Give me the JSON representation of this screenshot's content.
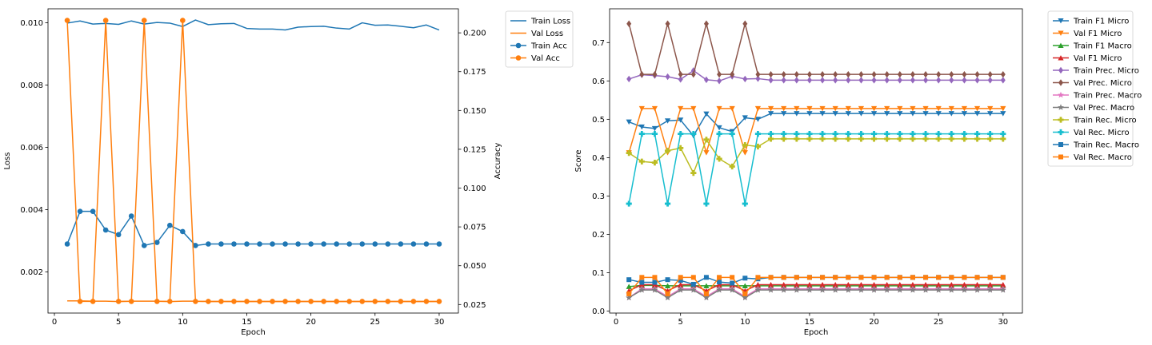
{
  "chart_data": [
    {
      "type": "line",
      "xlabel": "Epoch",
      "ylabel": "Loss",
      "y2label": "Accuracy",
      "xlim": [
        -0.5,
        31.5
      ],
      "ylim": [
        0.00068,
        0.01045
      ],
      "y2lim": [
        0.0195,
        0.2155
      ],
      "xticks": [
        0,
        5,
        10,
        15,
        20,
        25,
        30
      ],
      "yticks": [
        0.002,
        0.004,
        0.006,
        0.008,
        0.01
      ],
      "ytick_labels": [
        "0.002",
        "0.004",
        "0.006",
        "0.008",
        "0.010"
      ],
      "y2ticks": [
        0.025,
        0.05,
        0.075,
        0.1,
        0.125,
        0.15,
        0.175,
        0.2
      ],
      "y2tick_labels": [
        "0.025",
        "0.050",
        "0.075",
        "0.100",
        "0.125",
        "0.150",
        "0.175",
        "0.200"
      ],
      "legend_position": "outside-top-right",
      "x": [
        1,
        2,
        3,
        4,
        5,
        6,
        7,
        8,
        9,
        10,
        11,
        12,
        13,
        14,
        15,
        16,
        17,
        18,
        19,
        20,
        21,
        22,
        23,
        24,
        25,
        26,
        27,
        28,
        29,
        30
      ],
      "series": [
        {
          "name": "Train Loss",
          "axis": "left",
          "color": "#1f77b4",
          "marker": "none",
          "values": [
            0.00999,
            0.01006,
            0.00996,
            0.00998,
            0.00995,
            0.01006,
            0.00996,
            0.01001,
            0.00999,
            0.00988,
            0.01009,
            0.00994,
            0.00997,
            0.00998,
            0.00982,
            0.0098,
            0.0098,
            0.00977,
            0.00986,
            0.00988,
            0.00989,
            0.00983,
            0.0098,
            0.01,
            0.00992,
            0.00993,
            0.00989,
            0.00984,
            0.00993,
            0.00977
          ]
        },
        {
          "name": "Val Loss",
          "axis": "left",
          "color": "#ff7f0e",
          "marker": "none",
          "values": [
            0.00107,
            0.00107,
            0.00106,
            0.00106,
            0.00105,
            0.00106,
            0.00106,
            0.00106,
            0.00105,
            0.00106,
            0.00106,
            0.00105,
            0.00105,
            0.00105,
            0.00105,
            0.00105,
            0.00105,
            0.00105,
            0.00105,
            0.00105,
            0.00105,
            0.00105,
            0.00105,
            0.00105,
            0.00105,
            0.00105,
            0.00105,
            0.00105,
            0.00105,
            0.00105
          ]
        },
        {
          "name": "Train Acc",
          "axis": "right",
          "color": "#1f77b4",
          "marker": "circle",
          "values": [
            0.064,
            0.085,
            0.085,
            0.073,
            0.07,
            0.082,
            0.063,
            0.065,
            0.076,
            0.072,
            0.063,
            0.064,
            0.064,
            0.064,
            0.064,
            0.064,
            0.064,
            0.064,
            0.064,
            0.064,
            0.064,
            0.064,
            0.064,
            0.064,
            0.064,
            0.064,
            0.064,
            0.064,
            0.064,
            0.064
          ]
        },
        {
          "name": "Val Acc",
          "axis": "right",
          "color": "#ff7f0e",
          "marker": "circle",
          "values": [
            0.208,
            0.027,
            0.027,
            0.208,
            0.027,
            0.027,
            0.208,
            0.027,
            0.027,
            0.208,
            0.027,
            0.027,
            0.027,
            0.027,
            0.027,
            0.027,
            0.027,
            0.027,
            0.027,
            0.027,
            0.027,
            0.027,
            0.027,
            0.027,
            0.027,
            0.027,
            0.027,
            0.027,
            0.027,
            0.027
          ]
        }
      ]
    },
    {
      "type": "line",
      "xlabel": "Epoch",
      "ylabel": "Score",
      "xlim": [
        -0.5,
        31.5
      ],
      "ylim": [
        -0.005,
        0.788
      ],
      "xticks": [
        0,
        5,
        10,
        15,
        20,
        25,
        30
      ],
      "yticks": [
        0.0,
        0.1,
        0.2,
        0.3,
        0.4,
        0.5,
        0.6,
        0.7
      ],
      "ytick_labels": [
        "0.0",
        "0.1",
        "0.2",
        "0.3",
        "0.4",
        "0.5",
        "0.6",
        "0.7"
      ],
      "legend_position": "outside-top-right",
      "x": [
        1,
        2,
        3,
        4,
        5,
        6,
        7,
        8,
        9,
        10,
        11,
        12,
        13,
        14,
        15,
        16,
        17,
        18,
        19,
        20,
        21,
        22,
        23,
        24,
        25,
        26,
        27,
        28,
        29,
        30
      ],
      "series": [
        {
          "name": "Train F1 Micro",
          "color": "#1f77b4",
          "marker": "tri_down",
          "values": [
            0.493,
            0.48,
            0.476,
            0.496,
            0.498,
            0.457,
            0.514,
            0.478,
            0.468,
            0.504,
            0.5,
            0.515,
            0.515,
            0.515,
            0.515,
            0.515,
            0.515,
            0.515,
            0.515,
            0.515,
            0.515,
            0.515,
            0.515,
            0.515,
            0.515,
            0.515,
            0.515,
            0.515,
            0.515,
            0.515
          ]
        },
        {
          "name": "Val F1 Micro",
          "color": "#ff7f0e",
          "marker": "tri_down",
          "values": [
            0.413,
            0.528,
            0.528,
            0.413,
            0.528,
            0.528,
            0.413,
            0.528,
            0.528,
            0.413,
            0.528,
            0.528,
            0.528,
            0.528,
            0.528,
            0.528,
            0.528,
            0.528,
            0.528,
            0.528,
            0.528,
            0.528,
            0.528,
            0.528,
            0.528,
            0.528,
            0.528,
            0.528,
            0.528,
            0.528
          ]
        },
        {
          "name": "Train F1 Macro",
          "color": "#2ca02c",
          "marker": "tri_up",
          "values": [
            0.064,
            0.067,
            0.067,
            0.066,
            0.066,
            0.066,
            0.066,
            0.066,
            0.066,
            0.066,
            0.066,
            0.066,
            0.066,
            0.066,
            0.066,
            0.066,
            0.066,
            0.066,
            0.066,
            0.066,
            0.066,
            0.066,
            0.066,
            0.066,
            0.066,
            0.066,
            0.066,
            0.066,
            0.066,
            0.066
          ]
        },
        {
          "name": "Val F1 Micro",
          "color": "#d62728",
          "marker": "tri_up",
          "values": [
            0.053,
            0.069,
            0.069,
            0.053,
            0.069,
            0.069,
            0.053,
            0.069,
            0.069,
            0.053,
            0.069,
            0.069,
            0.069,
            0.069,
            0.069,
            0.069,
            0.069,
            0.069,
            0.069,
            0.069,
            0.069,
            0.069,
            0.069,
            0.069,
            0.069,
            0.069,
            0.069,
            0.069,
            0.069,
            0.069
          ]
        },
        {
          "name": "Train Prec. Micro",
          "color": "#9467bd",
          "marker": "diamond",
          "values": [
            0.605,
            0.616,
            0.614,
            0.611,
            0.604,
            0.627,
            0.603,
            0.6,
            0.612,
            0.605,
            0.606,
            0.602,
            0.602,
            0.602,
            0.602,
            0.602,
            0.602,
            0.602,
            0.602,
            0.602,
            0.602,
            0.602,
            0.602,
            0.602,
            0.602,
            0.602,
            0.602,
            0.602,
            0.602,
            0.602
          ]
        },
        {
          "name": "Val Prec. Micro",
          "color": "#8c564b",
          "marker": "diamond",
          "values": [
            0.749,
            0.617,
            0.617,
            0.749,
            0.617,
            0.617,
            0.749,
            0.617,
            0.617,
            0.749,
            0.617,
            0.617,
            0.617,
            0.617,
            0.617,
            0.617,
            0.617,
            0.617,
            0.617,
            0.617,
            0.617,
            0.617,
            0.617,
            0.617,
            0.617,
            0.617,
            0.617,
            0.617,
            0.617,
            0.617
          ]
        },
        {
          "name": "Train Prec. Macro",
          "color": "#e377c2",
          "marker": "star",
          "values": [
            0.035,
            0.058,
            0.058,
            0.038,
            0.058,
            0.058,
            0.038,
            0.058,
            0.058,
            0.038,
            0.058,
            0.058,
            0.058,
            0.058,
            0.058,
            0.058,
            0.058,
            0.058,
            0.058,
            0.058,
            0.058,
            0.058,
            0.058,
            0.058,
            0.058,
            0.058,
            0.058,
            0.058,
            0.058,
            0.058
          ]
        },
        {
          "name": "Val Prec. Macro",
          "color": "#7f7f7f",
          "marker": "star",
          "values": [
            0.035,
            0.055,
            0.055,
            0.035,
            0.055,
            0.055,
            0.035,
            0.055,
            0.055,
            0.035,
            0.055,
            0.055,
            0.055,
            0.055,
            0.055,
            0.055,
            0.055,
            0.055,
            0.055,
            0.055,
            0.055,
            0.055,
            0.055,
            0.055,
            0.055,
            0.055,
            0.055,
            0.055,
            0.055,
            0.055
          ]
        },
        {
          "name": "Train Rec. Micro",
          "color": "#bcbd22",
          "marker": "plus",
          "values": [
            0.412,
            0.39,
            0.387,
            0.418,
            0.425,
            0.36,
            0.447,
            0.397,
            0.377,
            0.433,
            0.429,
            0.449,
            0.449,
            0.449,
            0.449,
            0.449,
            0.449,
            0.449,
            0.449,
            0.449,
            0.449,
            0.449,
            0.449,
            0.449,
            0.449,
            0.449,
            0.449,
            0.449,
            0.449,
            0.449
          ]
        },
        {
          "name": "Val Rec. Micro",
          "color": "#17becf",
          "marker": "plus",
          "values": [
            0.28,
            0.462,
            0.462,
            0.28,
            0.462,
            0.462,
            0.28,
            0.462,
            0.462,
            0.28,
            0.462,
            0.462,
            0.462,
            0.462,
            0.462,
            0.462,
            0.462,
            0.462,
            0.462,
            0.462,
            0.462,
            0.462,
            0.462,
            0.462,
            0.462,
            0.462,
            0.462,
            0.462,
            0.462,
            0.462
          ]
        },
        {
          "name": "Train Rec. Macro",
          "color": "#1f77b4",
          "marker": "square",
          "values": [
            0.082,
            0.075,
            0.075,
            0.082,
            0.08,
            0.07,
            0.088,
            0.076,
            0.073,
            0.086,
            0.084,
            0.088,
            0.088,
            0.088,
            0.088,
            0.088,
            0.088,
            0.088,
            0.088,
            0.088,
            0.088,
            0.088,
            0.088,
            0.088,
            0.088,
            0.088,
            0.088,
            0.088,
            0.088,
            0.088
          ]
        },
        {
          "name": "Val Rec. Macro",
          "color": "#ff7f0e",
          "marker": "square",
          "values": [
            0.045,
            0.088,
            0.088,
            0.045,
            0.088,
            0.088,
            0.045,
            0.088,
            0.088,
            0.045,
            0.088,
            0.088,
            0.088,
            0.088,
            0.088,
            0.088,
            0.088,
            0.088,
            0.088,
            0.088,
            0.088,
            0.088,
            0.088,
            0.088,
            0.088,
            0.088,
            0.088,
            0.088,
            0.088,
            0.088
          ]
        }
      ]
    }
  ]
}
